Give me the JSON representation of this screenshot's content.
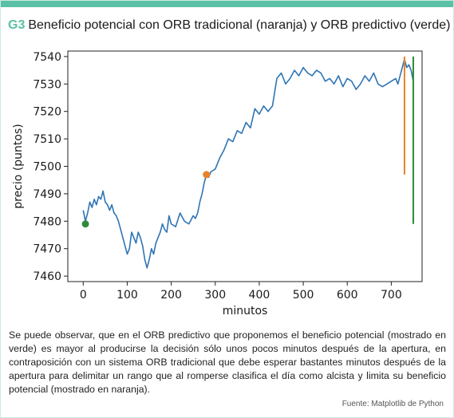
{
  "header": {
    "tag": "G3",
    "title": "Beneficio potencial con ORB tradicional  (naranja) y ORB predictivo (verde)"
  },
  "caption": "Se puede observar, que en el ORB predictivo que proponemos el beneficio potencial (mostrado en verde) es mayor al producirse la decisión sólo unos pocos minutos después de la apertura, en contraposición con un sistema ORB tradicional que debe esperar bastantes minutos después de la apertura para delimitar un rango que al romperse clasifica el día como alcista y limita su beneficio potencial (mostrado en naranja).",
  "source": "Fuente: Matplotlib de Python",
  "colors": {
    "accent": "#5bc0a5",
    "line": "#2f75b5",
    "orange": "#e8822a",
    "green": "#2e8b3a"
  },
  "chart_data": {
    "type": "line",
    "xlabel": "minutos",
    "ylabel": "precio (puntos)",
    "xlim": [
      -35,
      770
    ],
    "ylim": [
      7458,
      7542
    ],
    "xticks": [
      0,
      100,
      200,
      300,
      400,
      500,
      600,
      700
    ],
    "yticks": [
      7460,
      7470,
      7480,
      7490,
      7500,
      7510,
      7520,
      7530,
      7540
    ],
    "grid": false,
    "series": [
      {
        "x": [
          0,
          5,
          10,
          15,
          20,
          25,
          30,
          35,
          40,
          45,
          50,
          55,
          60,
          65,
          70,
          75,
          80,
          85,
          90,
          95,
          100,
          105,
          110,
          115,
          120,
          125,
          130,
          135,
          140,
          145,
          150,
          155,
          160,
          165,
          170,
          175,
          180,
          185,
          190,
          195,
          200,
          210,
          220,
          230,
          240,
          250,
          255,
          260,
          265,
          270,
          275,
          280,
          285,
          290,
          300,
          310,
          320,
          330,
          340,
          345,
          350,
          360,
          370,
          380,
          390,
          400,
          410,
          420,
          430,
          440,
          450,
          460,
          470,
          480,
          490,
          500,
          510,
          520,
          530,
          540,
          550,
          560,
          570,
          580,
          590,
          600,
          610,
          620,
          630,
          640,
          650,
          660,
          670,
          680,
          690,
          700,
          710,
          715,
          720,
          725,
          730,
          735,
          740,
          745,
          750
        ],
        "values": [
          7484,
          7480,
          7483,
          7487,
          7485,
          7488,
          7486,
          7489,
          7488,
          7491,
          7487,
          7486,
          7484,
          7486,
          7483,
          7482,
          7480,
          7477,
          7474,
          7471,
          7468,
          7470,
          7476,
          7474,
          7472,
          7476,
          7474,
          7471,
          7466,
          7463,
          7466,
          7470,
          7468,
          7472,
          7474,
          7476,
          7479,
          7477,
          7476,
          7482,
          7479,
          7478,
          7483,
          7480,
          7479,
          7482,
          7481,
          7483,
          7487,
          7490,
          7494,
          7497,
          7496,
          7498,
          7499,
          7503,
          7506,
          7510,
          7509,
          7511,
          7513,
          7512,
          7516,
          7514,
          7521,
          7519,
          7522,
          7520,
          7522,
          7532,
          7534,
          7530,
          7532,
          7535,
          7533,
          7536,
          7534,
          7533,
          7535,
          7534,
          7531,
          7532,
          7530,
          7533,
          7529,
          7532,
          7531,
          7528,
          7530,
          7533,
          7531,
          7534,
          7530,
          7529,
          7530,
          7531,
          7532,
          7530,
          7533,
          7536,
          7539,
          7536,
          7537,
          7535,
          7531
        ]
      }
    ],
    "annotations": [
      {
        "name": "ORB predictivo",
        "type": "point",
        "x": 5,
        "y": 7479,
        "color": "green"
      },
      {
        "name": "ORB tradicional",
        "type": "point",
        "x": 280,
        "y": 7497,
        "color": "orange"
      },
      {
        "name": "beneficio ORB tradicional",
        "type": "vline",
        "x": 730,
        "y0": 7497,
        "y1": 7540,
        "color": "orange"
      },
      {
        "name": "beneficio ORB predictivo",
        "type": "vline",
        "x": 750,
        "y0": 7479,
        "y1": 7540,
        "color": "green"
      }
    ]
  }
}
